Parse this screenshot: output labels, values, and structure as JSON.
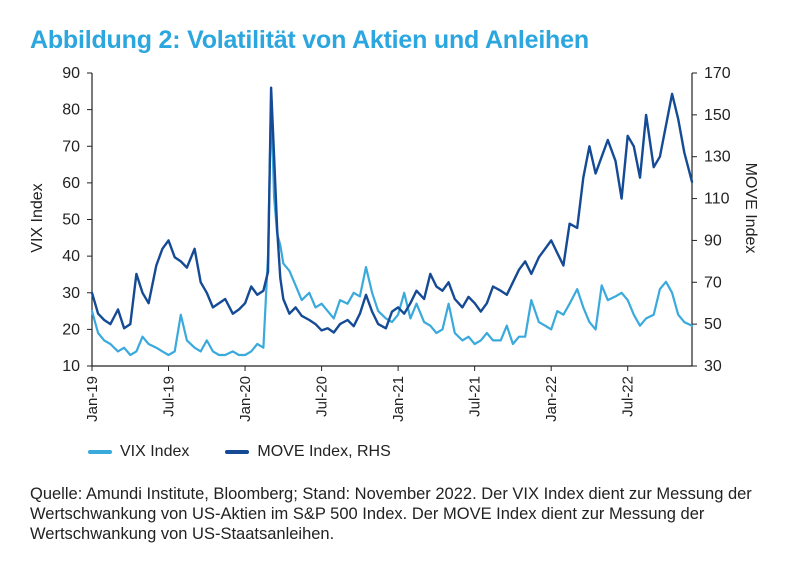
{
  "title": "Abbildung 2: Volatilität von Aktien und Anleihen",
  "source_note": "Quelle: Amundi Institute, Bloomberg; Stand: November 2022. Der VIX Index dient zur Messung der Wertschwankung von US-Aktien im S&P 500 Index. Der MOVE Index dient zur Messung der Wertschwankung von US-Staatsanleihen.",
  "colors": {
    "vix": "#3aa9dc",
    "move": "#154a94",
    "title": "#2ba6de"
  },
  "chart_data": {
    "type": "line",
    "title": "Abbildung 2: Volatilität von Aktien und Anleihen",
    "xlabel": "",
    "ylabel": "VIX Index",
    "ylabel_right": "MOVE Index",
    "ylim": [
      10,
      90
    ],
    "ylim_right": [
      30,
      170
    ],
    "yticks": [
      "10",
      "20",
      "30",
      "40",
      "50",
      "60",
      "70",
      "80",
      "90"
    ],
    "yticks_right": [
      "30",
      "50",
      "70",
      "90",
      "110",
      "130",
      "150",
      "170"
    ],
    "xlim": [
      2019.0,
      2022.92
    ],
    "xticks": [
      {
        "label": "Jan-19",
        "x": 2019.0
      },
      {
        "label": "Jul-19",
        "x": 2019.5
      },
      {
        "label": "Jan-20",
        "x": 2020.0
      },
      {
        "label": "Jul-20",
        "x": 2020.5
      },
      {
        "label": "Jan-21",
        "x": 2021.0
      },
      {
        "label": "Jul-21",
        "x": 2021.5
      },
      {
        "label": "Jan-22",
        "x": 2022.0
      },
      {
        "label": "Jul-22",
        "x": 2022.5
      }
    ],
    "legend_position": "bottom-left",
    "grid": false,
    "series": [
      {
        "name": "VIX Index",
        "axis": "left",
        "x": [
          2019.0,
          2019.04,
          2019.08,
          2019.12,
          2019.17,
          2019.21,
          2019.25,
          2019.29,
          2019.33,
          2019.37,
          2019.42,
          2019.46,
          2019.5,
          2019.54,
          2019.58,
          2019.62,
          2019.67,
          2019.71,
          2019.75,
          2019.79,
          2019.83,
          2019.87,
          2019.92,
          2019.96,
          2020.0,
          2020.04,
          2020.08,
          2020.12,
          2020.15,
          2020.17,
          2020.19,
          2020.21,
          2020.23,
          2020.25,
          2020.29,
          2020.33,
          2020.37,
          2020.42,
          2020.46,
          2020.5,
          2020.54,
          2020.58,
          2020.62,
          2020.67,
          2020.71,
          2020.75,
          2020.79,
          2020.83,
          2020.87,
          2020.92,
          2020.96,
          2021.0,
          2021.04,
          2021.08,
          2021.12,
          2021.17,
          2021.21,
          2021.25,
          2021.29,
          2021.33,
          2021.37,
          2021.42,
          2021.46,
          2021.5,
          2021.54,
          2021.58,
          2021.62,
          2021.67,
          2021.71,
          2021.75,
          2021.79,
          2021.83,
          2021.87,
          2021.92,
          2021.96,
          2022.0,
          2022.04,
          2022.08,
          2022.12,
          2022.17,
          2022.21,
          2022.25,
          2022.29,
          2022.33,
          2022.37,
          2022.42,
          2022.46,
          2022.5,
          2022.54,
          2022.58,
          2022.62,
          2022.67,
          2022.71,
          2022.75,
          2022.79,
          2022.83,
          2022.87,
          2022.92
        ],
        "values": [
          25,
          19,
          17,
          16,
          14,
          15,
          13,
          14,
          18,
          16,
          15,
          14,
          13,
          14,
          24,
          17,
          15,
          14,
          17,
          14,
          13,
          13,
          14,
          13,
          13,
          14,
          16,
          15,
          40,
          83,
          56,
          46,
          43,
          38,
          36,
          32,
          28,
          30,
          26,
          27,
          25,
          23,
          28,
          27,
          30,
          29,
          37,
          30,
          25,
          23,
          22,
          24,
          30,
          23,
          27,
          22,
          21,
          19,
          20,
          27,
          19,
          17,
          18,
          16,
          17,
          19,
          17,
          17,
          21,
          16,
          18,
          18,
          28,
          22,
          21,
          20,
          25,
          24,
          27,
          31,
          26,
          22,
          20,
          32,
          28,
          29,
          30,
          28,
          24,
          21,
          23,
          24,
          31,
          33,
          30,
          24,
          22,
          21
        ]
      },
      {
        "name": "MOVE Index, RHS",
        "axis": "right",
        "x": [
          2019.0,
          2019.04,
          2019.08,
          2019.12,
          2019.17,
          2019.21,
          2019.25,
          2019.29,
          2019.33,
          2019.37,
          2019.42,
          2019.46,
          2019.5,
          2019.54,
          2019.58,
          2019.62,
          2019.67,
          2019.71,
          2019.75,
          2019.79,
          2019.83,
          2019.87,
          2019.92,
          2019.96,
          2020.0,
          2020.04,
          2020.08,
          2020.12,
          2020.15,
          2020.17,
          2020.19,
          2020.21,
          2020.23,
          2020.25,
          2020.29,
          2020.33,
          2020.37,
          2020.42,
          2020.46,
          2020.5,
          2020.54,
          2020.58,
          2020.62,
          2020.67,
          2020.71,
          2020.75,
          2020.79,
          2020.83,
          2020.87,
          2020.92,
          2020.96,
          2021.0,
          2021.04,
          2021.08,
          2021.12,
          2021.17,
          2021.21,
          2021.25,
          2021.29,
          2021.33,
          2021.37,
          2021.42,
          2021.46,
          2021.5,
          2021.54,
          2021.58,
          2021.62,
          2021.67,
          2021.71,
          2021.75,
          2021.79,
          2021.83,
          2021.87,
          2021.92,
          2021.96,
          2022.0,
          2022.04,
          2022.08,
          2022.12,
          2022.17,
          2022.21,
          2022.25,
          2022.29,
          2022.33,
          2022.37,
          2022.42,
          2022.46,
          2022.5,
          2022.54,
          2022.58,
          2022.62,
          2022.67,
          2022.71,
          2022.75,
          2022.79,
          2022.83,
          2022.87,
          2022.92
        ],
        "values": [
          65,
          55,
          52,
          50,
          57,
          48,
          50,
          74,
          65,
          60,
          78,
          86,
          90,
          82,
          80,
          77,
          86,
          70,
          65,
          58,
          60,
          62,
          55,
          57,
          60,
          68,
          64,
          66,
          75,
          163,
          130,
          95,
          72,
          62,
          55,
          58,
          54,
          52,
          50,
          47,
          48,
          46,
          50,
          52,
          49,
          55,
          64,
          56,
          50,
          48,
          56,
          58,
          55,
          60,
          66,
          62,
          74,
          68,
          66,
          70,
          62,
          58,
          63,
          60,
          56,
          60,
          68,
          66,
          64,
          70,
          76,
          80,
          74,
          82,
          86,
          90,
          84,
          78,
          98,
          96,
          120,
          135,
          122,
          130,
          138,
          128,
          110,
          140,
          135,
          120,
          150,
          125,
          130,
          145,
          160,
          148,
          132,
          118
        ]
      }
    ]
  }
}
